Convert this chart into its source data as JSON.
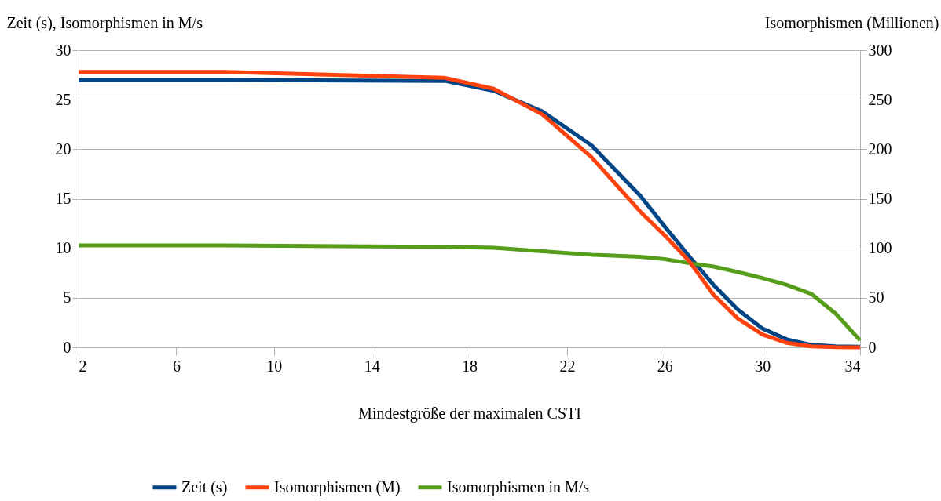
{
  "chart_data": {
    "type": "line",
    "xlabel": "Mindestgröße der maximalen CSTI",
    "ylabel": "Zeit (s), Isomorphismen in M/s",
    "y2label": "Isomorphismen (Millionen)",
    "x": [
      2,
      8,
      17,
      19,
      21,
      23,
      25,
      26,
      27,
      28,
      29,
      30,
      31,
      32,
      33,
      34
    ],
    "series": [
      {
        "name": "Zeit (s)",
        "color": "#004586",
        "values": [
          27,
          27,
          26.9,
          25.9,
          23.8,
          20.4,
          15.3,
          12.2,
          9.2,
          6.3,
          3.8,
          1.9,
          0.8,
          0.25,
          0.1,
          0.05
        ]
      },
      {
        "name": "Isomorphismen (M)",
        "color": "#ff420e",
        "axis": "y2",
        "values": [
          278,
          278,
          272,
          261,
          235,
          192,
          137,
          113,
          87,
          53,
          29,
          13,
          4.5,
          1,
          0.2,
          0
        ]
      },
      {
        "name": "Isomorphismen in M/s",
        "color": "#579d1c",
        "values": [
          10.3,
          10.3,
          10.15,
          10.05,
          9.7,
          9.35,
          9.15,
          8.9,
          8.5,
          8.15,
          7.6,
          7.0,
          6.3,
          5.4,
          3.4,
          0.7
        ]
      }
    ],
    "xlim": [
      2,
      34
    ],
    "xticks": [
      2,
      6,
      10,
      14,
      18,
      22,
      26,
      30,
      34
    ],
    "ylim": [
      0,
      30
    ],
    "yticks": [
      0,
      5,
      10,
      15,
      20,
      25,
      30
    ],
    "y2lim": [
      0,
      300
    ],
    "y2ticks": [
      0,
      50,
      100,
      150,
      200,
      250,
      300
    ],
    "grid": "y",
    "legend": "bottom",
    "marker": "none",
    "line_style": "solid"
  }
}
